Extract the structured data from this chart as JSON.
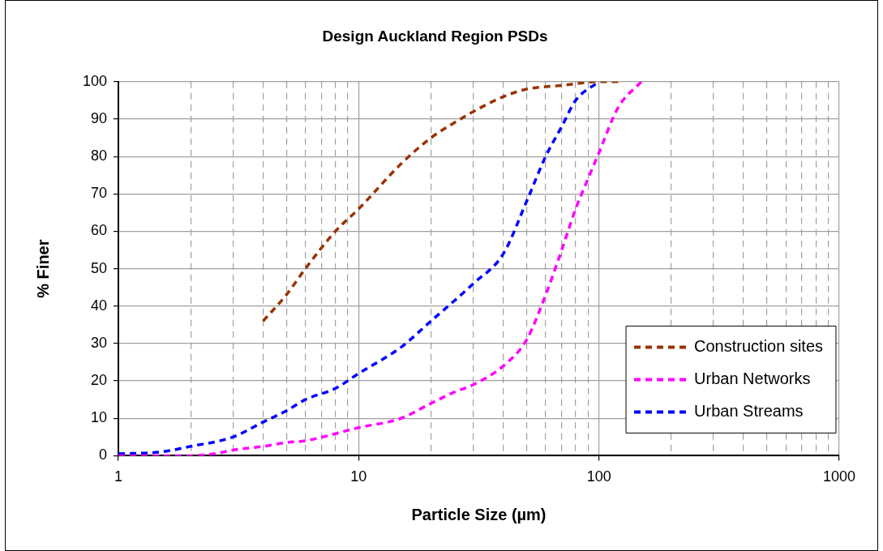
{
  "chart_data": {
    "type": "line",
    "title": "Design Auckland Region PSDs",
    "xlabel": "Particle Size (µm)",
    "ylabel": "% Finer",
    "log": "x",
    "grid": true,
    "legend": "bottom right",
    "line_style": "dashed",
    "marker": "none",
    "xlim": [
      1,
      1000
    ],
    "xticks": [
      1,
      {
        "value": 2,
        "label": null
      },
      {
        "value": 3,
        "label": null
      },
      {
        "value": 4,
        "label": null
      },
      {
        "value": 5,
        "label": null
      },
      {
        "value": 6,
        "label": null
      },
      {
        "value": 7,
        "label": null
      },
      {
        "value": 8,
        "label": null
      },
      {
        "value": 9,
        "label": null
      },
      10,
      {
        "value": 20,
        "label": null
      },
      {
        "value": 30,
        "label": null
      },
      {
        "value": 40,
        "label": null
      },
      {
        "value": 50,
        "label": null
      },
      {
        "value": 60,
        "label": null
      },
      {
        "value": 70,
        "label": null
      },
      {
        "value": 80,
        "label": null
      },
      {
        "value": 90,
        "label": null
      },
      100,
      {
        "value": 200,
        "label": null
      },
      {
        "value": 300,
        "label": null
      },
      {
        "value": 400,
        "label": null
      },
      {
        "value": 500,
        "label": null
      },
      {
        "value": 600,
        "label": null
      },
      {
        "value": 700,
        "label": null
      },
      {
        "value": 800,
        "label": null
      },
      {
        "value": 900,
        "label": null
      },
      1000
    ],
    "ylim": [
      0,
      100
    ],
    "yticks": [
      0,
      10,
      20,
      30,
      40,
      50,
      60,
      70,
      80,
      90,
      100
    ],
    "series": [
      {
        "name": "Construction sites",
        "color": "#993300",
        "x": [
          4,
          5,
          6,
          8,
          10,
          15,
          20,
          25,
          30,
          40,
          50,
          70,
          100,
          125
        ],
        "values": [
          36,
          43,
          50,
          60,
          66,
          78,
          85,
          89,
          92,
          96,
          98,
          99,
          100,
          100
        ]
      },
      {
        "name": "Urban Networks",
        "color": "#ff00ff",
        "x": [
          1,
          2,
          2.5,
          3,
          4,
          5,
          6,
          10,
          15,
          20,
          25,
          30,
          40,
          50,
          60,
          70,
          80,
          90,
          100,
          120,
          150
        ],
        "values": [
          0,
          0,
          0.5,
          1.5,
          2.5,
          3.5,
          4,
          7.5,
          10,
          14,
          17,
          19,
          24,
          31,
          43,
          55,
          66,
          74,
          81,
          93,
          100
        ]
      },
      {
        "name": "Urban Streams",
        "color": "#0000ff",
        "x": [
          1,
          1.5,
          2,
          3,
          4,
          5,
          6,
          8,
          10,
          15,
          20,
          30,
          40,
          50,
          60,
          70,
          80,
          100
        ],
        "values": [
          0.5,
          1,
          2.5,
          5,
          9,
          12,
          15,
          18,
          22,
          29,
          36,
          46,
          54,
          68,
          80,
          88,
          95,
          100
        ]
      }
    ]
  }
}
